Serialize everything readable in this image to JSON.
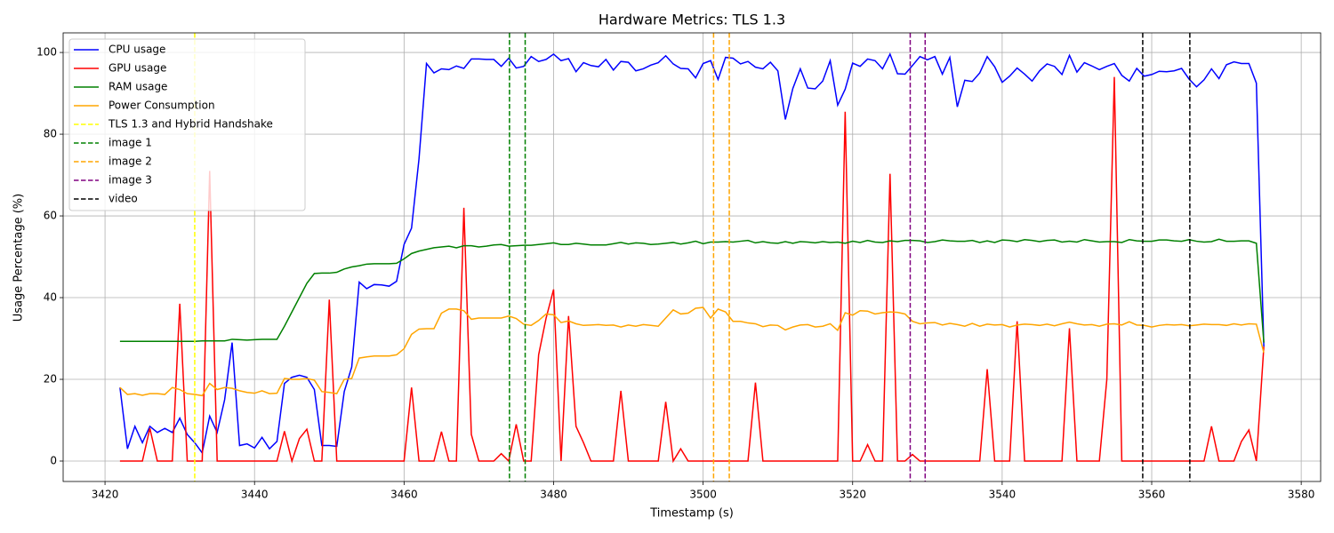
{
  "chart_data": {
    "type": "line",
    "title": "Hardware Metrics: TLS 1.3",
    "xlabel": "Timestamp (s)",
    "ylabel": "Usage Percentage (%)",
    "x": [
      3422,
      3423,
      3424,
      3425,
      3426,
      3427,
      3428,
      3429,
      3430,
      3431,
      3432,
      3433,
      3434,
      3435,
      3436,
      3437,
      3438,
      3439,
      3440,
      3441,
      3442,
      3443,
      3444,
      3445,
      3446,
      3447,
      3448,
      3449,
      3450,
      3451,
      3452,
      3453,
      3454,
      3455,
      3456,
      3457,
      3458,
      3459,
      3460,
      3461,
      3462,
      3463,
      3464,
      3465,
      3466,
      3467,
      3468,
      3469,
      3470,
      3471,
      3472,
      3473,
      3474,
      3475,
      3476,
      3477,
      3478,
      3479,
      3480,
      3481,
      3482,
      3483,
      3484,
      3485,
      3486,
      3487,
      3488,
      3489,
      3490,
      3491,
      3492,
      3493,
      3494,
      3495,
      3496,
      3497,
      3498,
      3499,
      3500,
      3501,
      3502,
      3503,
      3504,
      3505,
      3506,
      3507,
      3508,
      3509,
      3510,
      3511,
      3512,
      3513,
      3514,
      3515,
      3516,
      3517,
      3518,
      3519,
      3520,
      3521,
      3522,
      3523,
      3524,
      3525,
      3526,
      3527,
      3528,
      3529,
      3530,
      3531,
      3532,
      3533,
      3534,
      3535,
      3536,
      3537,
      3538,
      3539,
      3540,
      3541,
      3542,
      3543,
      3544,
      3545,
      3546,
      3547,
      3548,
      3549,
      3550,
      3551,
      3552,
      3553,
      3554,
      3555,
      3556,
      3557,
      3558,
      3559,
      3560,
      3561,
      3562,
      3563,
      3564,
      3565,
      3566,
      3567,
      3568,
      3569,
      3570,
      3571,
      3572,
      3573,
      3574,
      3575
    ],
    "series": [
      {
        "name": "CPU usage",
        "color": "blue",
        "values": [
          18,
          3,
          8.5,
          4.5,
          8.5,
          7,
          8,
          7,
          10.5,
          6.5,
          4.5,
          2,
          11,
          7,
          15,
          29,
          3.8,
          4.2,
          3.2,
          5.8,
          3,
          4.8,
          19,
          20.5,
          21,
          20.5,
          17.5,
          3.8,
          3.8,
          3.6,
          17,
          23,
          43.8,
          42.2,
          43.2,
          43.1,
          42.8,
          44,
          53,
          57,
          74,
          97.3,
          95,
          96,
          95.8,
          96.7,
          96.1,
          98.4,
          98.4,
          98.3,
          98.3,
          96.6,
          98.6,
          96.2,
          96.6,
          99,
          97.8,
          98.3,
          99.6,
          98,
          98.5,
          95.3,
          97.5,
          96.8,
          96.5,
          98.3,
          95.7,
          97.8,
          97.6,
          95.5,
          96,
          96.9,
          97.5,
          99.2,
          97.2,
          96.1,
          96,
          93.8,
          97.3,
          98,
          93.4,
          98.8,
          98.6,
          97.2,
          97.8,
          96.4,
          96,
          97.6,
          95.5,
          83.6,
          91.2,
          96,
          91.3,
          91.1,
          93,
          98,
          87.1,
          91,
          97.4,
          96.6,
          98.4,
          98,
          96,
          99.6,
          94.8,
          94.7,
          96.8,
          99,
          98.2,
          99,
          94.7,
          98.8,
          86.7,
          93.2,
          92.9,
          95,
          99,
          96.5,
          92.7,
          94.2,
          96.2,
          94.7,
          93,
          95.5,
          97.2,
          96.6,
          94.6,
          99.3,
          95.2,
          97.5,
          96.7,
          95.8,
          96.6,
          97.3,
          94.4,
          93,
          96.1,
          94.2,
          94.6,
          95.4,
          95.3,
          95.5,
          96.1,
          93.5,
          91.6,
          93.3,
          96,
          93.6,
          97,
          97.7,
          97.3,
          97.3,
          92.5,
          28
        ]
      },
      {
        "name": "GPU usage",
        "color": "red",
        "values": [
          0,
          0,
          0,
          0,
          8,
          0,
          0,
          0,
          38.5,
          0,
          0,
          0,
          71,
          0,
          0,
          0,
          0,
          0,
          0,
          0,
          0,
          0,
          7.3,
          0,
          5.5,
          7.8,
          0,
          0,
          39.5,
          0,
          0,
          0,
          0,
          0,
          0,
          0,
          0,
          0,
          0,
          18,
          0,
          0,
          0,
          7.2,
          0,
          0,
          62,
          6.5,
          0,
          0,
          0,
          1.8,
          0,
          9,
          0,
          0,
          26,
          35,
          42,
          0,
          35.5,
          8.5,
          4.5,
          0,
          0,
          0,
          0,
          17.2,
          0,
          0,
          0,
          0,
          0,
          14.5,
          0,
          3,
          0,
          0,
          0,
          0,
          0,
          0,
          0,
          0,
          0,
          19.2,
          0,
          0,
          0,
          0,
          0,
          0,
          0,
          0,
          0,
          0,
          0,
          85.5,
          0,
          0,
          4,
          0,
          0,
          70.3,
          0,
          0,
          1.6,
          0,
          0,
          0,
          0,
          0,
          0,
          0,
          0,
          0,
          22.5,
          0,
          0,
          0,
          34.2,
          0,
          0,
          0,
          0,
          0,
          0,
          32.5,
          0,
          0,
          0,
          0,
          20,
          94,
          0,
          0,
          0,
          0,
          0,
          0,
          0,
          0,
          0,
          0,
          0,
          0,
          8.5,
          0,
          0,
          0,
          4.8,
          7.6,
          0,
          28
        ]
      },
      {
        "name": "RAM usage",
        "color": "green",
        "values": [
          29.3,
          29.3,
          29.3,
          29.3,
          29.3,
          29.3,
          29.3,
          29.3,
          29.3,
          29.3,
          29.3,
          29.4,
          29.4,
          29.4,
          29.4,
          29.8,
          29.7,
          29.6,
          29.7,
          29.8,
          29.8,
          29.8,
          33,
          36.5,
          40,
          43.5,
          45.9,
          46,
          46,
          46.2,
          47,
          47.5,
          47.8,
          48.2,
          48.3,
          48.3,
          48.3,
          48.4,
          49.5,
          50.8,
          51.4,
          51.8,
          52.2,
          52.4,
          52.6,
          52.2,
          52.7,
          52.7,
          52.4,
          52.6,
          52.9,
          53,
          52.6,
          52.7,
          52.8,
          52.8,
          53,
          53.2,
          53.4,
          53,
          53,
          53.3,
          53.1,
          52.9,
          52.9,
          52.9,
          53.2,
          53.5,
          53.1,
          53.4,
          53.3,
          53,
          53.1,
          53.3,
          53.5,
          53.1,
          53.4,
          53.8,
          53.2,
          53.6,
          53.6,
          53.7,
          53.6,
          53.8,
          54,
          53.4,
          53.7,
          53.4,
          53.3,
          53.7,
          53.3,
          53.7,
          53.6,
          53.4,
          53.7,
          53.5,
          53.6,
          53.3,
          53.8,
          53.5,
          54,
          53.6,
          53.5,
          53.9,
          53.7,
          54,
          54,
          53.9,
          53.5,
          53.7,
          54.1,
          53.9,
          53.8,
          53.8,
          54,
          53.5,
          53.9,
          53.5,
          54.1,
          54,
          53.7,
          54.2,
          54,
          53.7,
          54,
          54.1,
          53.6,
          53.8,
          53.6,
          54.2,
          53.9,
          53.6,
          53.7,
          53.7,
          53.5,
          54.2,
          53.9,
          53.8,
          53.8,
          54.1,
          54.1,
          53.9,
          53.8,
          54.2,
          53.8,
          53.6,
          53.7,
          54.3,
          53.8,
          53.8,
          53.9,
          53.9,
          53.3,
          29
        ]
      },
      {
        "name": "Power Consumption",
        "color": "orange",
        "values": [
          18,
          16.3,
          16.5,
          16.1,
          16.5,
          16.5,
          16.3,
          18,
          17.5,
          16.5,
          16.3,
          16,
          19,
          17.5,
          18,
          17.8,
          17.2,
          16.8,
          16.6,
          17.2,
          16.5,
          16.6,
          20.2,
          20,
          20,
          20.2,
          19.8,
          17,
          16.8,
          16.5,
          20,
          20.2,
          25.2,
          25.5,
          25.7,
          25.7,
          25.7,
          26,
          27.5,
          31,
          32.3,
          32.4,
          32.4,
          36.2,
          37.2,
          37.2,
          36.8,
          34.7,
          35,
          35,
          35,
          35,
          35.5,
          34.9,
          33.5,
          33.2,
          34.4,
          36,
          35.8,
          33.9,
          34.3,
          33.6,
          33.2,
          33.3,
          33.4,
          33.2,
          33.3,
          32.8,
          33.3,
          33,
          33.4,
          33.2,
          33,
          35,
          37,
          36,
          36.2,
          37.4,
          37.6,
          35,
          37.2,
          36.5,
          34.2,
          34.2,
          33.8,
          33.6,
          32.9,
          33.3,
          33.2,
          32.1,
          32.8,
          33.3,
          33.4,
          32.8,
          33,
          33.6,
          32,
          36.3,
          35.7,
          36.8,
          36.7,
          36,
          36.3,
          36.5,
          36.4,
          36,
          34.2,
          33.6,
          33.8,
          33.9,
          33.3,
          33.7,
          33.4,
          33,
          33.7,
          33,
          33.5,
          33.3,
          33.4,
          32.8,
          33.3,
          33.5,
          33.4,
          33.2,
          33.5,
          33.1,
          33.6,
          34,
          33.6,
          33.3,
          33.4,
          33,
          33.5,
          33.6,
          33.3,
          34.1,
          33.3,
          33.2,
          32.8,
          33.2,
          33.4,
          33.3,
          33.4,
          33.1,
          33.3,
          33.5,
          33.4,
          33.4,
          33.2,
          33.6,
          33.3,
          33.6,
          33.5,
          26.5
        ]
      }
    ],
    "markers": [
      {
        "name": "TLS 1.3 and Hybrid Handshake",
        "color": "yellow",
        "x": [
          3432
        ]
      },
      {
        "name": "image 1",
        "color": "green",
        "x": [
          3474.1,
          3476.2
        ]
      },
      {
        "name": "image 2",
        "color": "orange",
        "x": [
          3501.4,
          3503.5
        ]
      },
      {
        "name": "image 3",
        "color": "purple",
        "x": [
          3527.7,
          3529.7
        ]
      },
      {
        "name": "video",
        "color": "black",
        "x": [
          3558.8,
          3565.1
        ]
      }
    ],
    "xlim": [
      3414.4,
      3582.6
    ],
    "ylim": [
      -5,
      104.8
    ],
    "xticks": [
      3420,
      3440,
      3460,
      3480,
      3500,
      3520,
      3540,
      3560,
      3580
    ],
    "yticks": [
      0,
      20,
      40,
      60,
      80,
      100
    ],
    "grid": true,
    "legend": "upper left"
  }
}
